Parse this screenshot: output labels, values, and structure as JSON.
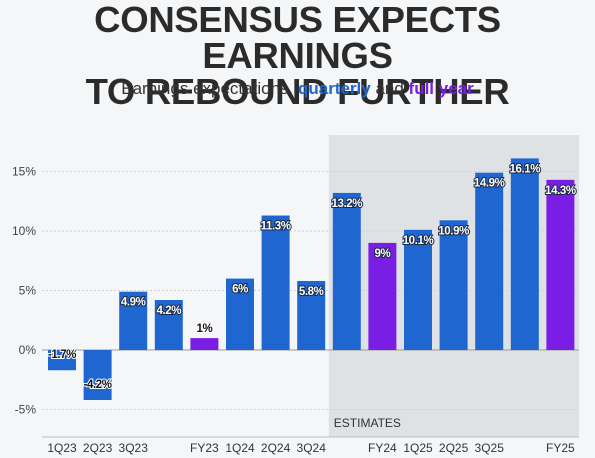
{
  "header": {
    "title_line1": "CONSENSUS EXPECTS EARNINGS",
    "title_line2": "TO REBOUND FURTHER",
    "subtitle_prefix": "Earnings expectations, ",
    "subtitle_quarterly": "quarterly",
    "subtitle_and": " and ",
    "subtitle_full_year": "full year"
  },
  "chart_data": {
    "type": "bar",
    "categories": [
      "1Q23",
      "2Q23",
      "3Q23",
      "",
      "FY23",
      "1Q24",
      "2Q24",
      "3Q24",
      "",
      "FY24",
      "1Q25",
      "2Q25",
      "3Q25",
      "",
      "FY25"
    ],
    "values": [
      -1.7,
      -4.2,
      4.9,
      4.2,
      1,
      6,
      11.3,
      5.8,
      13.2,
      9,
      10.1,
      10.9,
      14.9,
      16.1,
      14.3
    ],
    "value_labels": [
      "-1.7%",
      "-4.2%",
      "4.9%",
      "4.2%",
      "1%",
      "6%",
      "11.3%",
      "5.8%",
      "13.2%",
      "9%",
      "10.1%",
      "10.9%",
      "14.9%",
      "16.1%",
      "14.3%"
    ],
    "kinds": [
      "quarter",
      "quarter",
      "quarter",
      "quarter",
      "year",
      "quarter",
      "quarter",
      "quarter",
      "quarter",
      "year",
      "quarter",
      "quarter",
      "quarter",
      "quarter",
      "year"
    ],
    "y_ticks": [
      15,
      10,
      5,
      0,
      -5
    ],
    "y_tick_labels": [
      "15%",
      "10%",
      "5%",
      "0%",
      "-5%"
    ],
    "ylim": [
      -6.5,
      18
    ],
    "estimates_start_index": 8,
    "estimates_label": "ESTIMATES",
    "colors": {
      "quarter": "#1f66d1",
      "year": "#7a1ee6",
      "estimates_band": "#dfe2e5",
      "grid": "#d2d2d2",
      "zero_line": "#9a9a9a"
    },
    "title": "CONSENSUS EXPECTS EARNINGS TO REBOUND FURTHER",
    "xlabel": "",
    "ylabel": "",
    "grid": true
  }
}
